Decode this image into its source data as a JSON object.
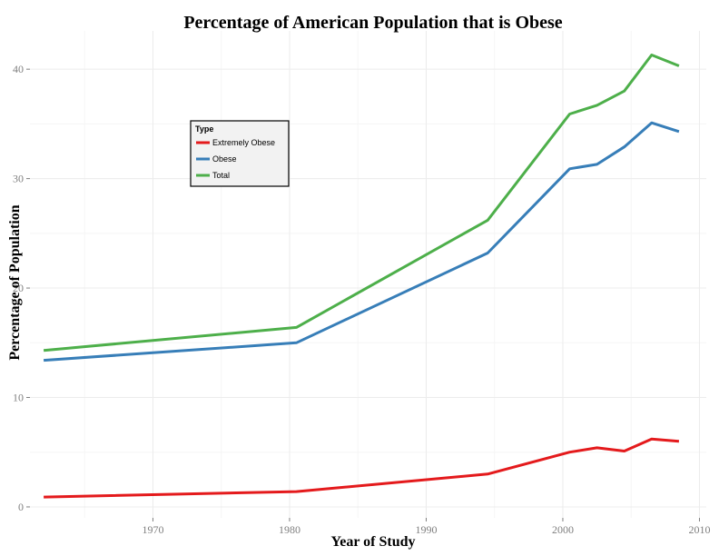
{
  "chart_data": {
    "type": "line",
    "title": "Percentage of American Population that is Obese",
    "xlabel": "Year of Study",
    "ylabel": "Percentage of Population",
    "xlim": [
      1961,
      2010.5
    ],
    "ylim": [
      -1,
      43.5
    ],
    "x_ticks": [
      1970,
      1980,
      1990,
      2000,
      2010
    ],
    "y_ticks": [
      0,
      10,
      20,
      30,
      40
    ],
    "grid": true,
    "legend": {
      "title": "Type",
      "placement": "upper-left inside plot",
      "entries": [
        {
          "label": "Extremely Obese",
          "color": "#e41a1c"
        },
        {
          "label": "Obese",
          "color": "#377eb8"
        },
        {
          "label": "Total",
          "color": "#4daf4a"
        }
      ]
    },
    "series": [
      {
        "name": "Extremely Obese",
        "color": "#e41a1c",
        "points": [
          [
            1962,
            0.9
          ],
          [
            1980.5,
            1.4
          ],
          [
            1994.5,
            3.0
          ],
          [
            2000.5,
            5.0
          ],
          [
            2002.5,
            5.4
          ],
          [
            2004.5,
            5.1
          ],
          [
            2006.5,
            6.2
          ],
          [
            2008.5,
            6.0
          ]
        ]
      },
      {
        "name": "Obese",
        "color": "#377eb8",
        "points": [
          [
            1962,
            13.4
          ],
          [
            1980.5,
            15.0
          ],
          [
            1994.5,
            23.2
          ],
          [
            2000.5,
            30.9
          ],
          [
            2002.5,
            31.3
          ],
          [
            2004.5,
            32.9
          ],
          [
            2006.5,
            35.1
          ],
          [
            2008.5,
            34.3
          ]
        ]
      },
      {
        "name": "Total",
        "color": "#4daf4a",
        "points": [
          [
            1962,
            14.3
          ],
          [
            1980.5,
            16.4
          ],
          [
            1994.5,
            26.2
          ],
          [
            2000.5,
            35.9
          ],
          [
            2002.5,
            36.7
          ],
          [
            2004.5,
            38.0
          ],
          [
            2006.5,
            41.3
          ],
          [
            2008.5,
            40.3
          ]
        ]
      }
    ]
  }
}
